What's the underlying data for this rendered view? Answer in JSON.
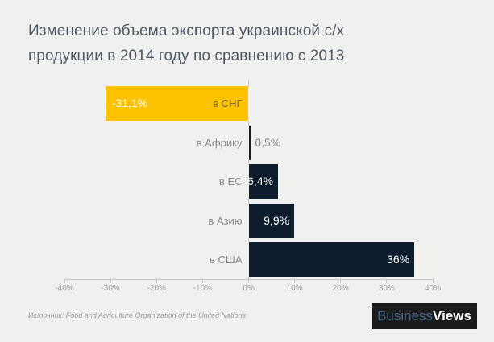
{
  "page": {
    "background_color": "#F0F0EE",
    "title_line1": "Изменение объема экспорта украинской с/х",
    "title_line2": "продукции в 2014 году по сравнению с 2013",
    "title_color": "#4D5966",
    "source_note": "Источник: Food and Agriculture Organization of the United Nations",
    "logo": {
      "part1": "Business",
      "part2": "Views",
      "part1_color": "#44688C",
      "part2_color": "#FFFFFF",
      "background": "#1B1B1B"
    }
  },
  "chart_data": {
    "type": "bar",
    "orientation": "horizontal",
    "title": "Изменение объема экспорта украинской с/х продукции в 2014 году по сравнению с 2013",
    "categories": [
      "в СНГ",
      "в Африку",
      "в ЕС",
      "в Азию",
      "в США"
    ],
    "values": [
      -31.1,
      0.5,
      6.4,
      9.9,
      36
    ],
    "value_labels": [
      "-31,1%",
      "0,5%",
      "6,4%",
      "9,9%",
      "36%"
    ],
    "xlabel": "",
    "ylabel": "",
    "xlim": [
      -40,
      40
    ],
    "grid": false,
    "legend": false,
    "axis_line_color": "#C6C6C6",
    "tick_label_color": "#9C9C9C",
    "x_ticks": [
      {
        "label": "-40%",
        "value": -40
      },
      {
        "label": "-30%",
        "value": -30
      },
      {
        "label": "-20%",
        "value": -20
      },
      {
        "label": "-10%",
        "value": -10
      },
      {
        "label": "0%",
        "value": 0
      },
      {
        "label": "10%",
        "value": 10
      },
      {
        "label": "20%",
        "value": 20
      },
      {
        "label": "30%",
        "value": 30
      },
      {
        "label": "40%",
        "value": 40
      }
    ],
    "series": [
      {
        "category": "в СНГ",
        "value": -31.1,
        "value_label": "-31,1%",
        "bar_color": "#FDC300",
        "value_label_color": "#FFFFFF",
        "value_label_pos": "inside-start",
        "category_label_color": "#6F6B57"
      },
      {
        "category": "в Африку",
        "value": 0.5,
        "value_label": "0,5%",
        "bar_color": "#0D1D2D",
        "value_label_color": "#8A8A8A",
        "value_label_pos": "outside-end",
        "category_label_color": "#8A8A8A"
      },
      {
        "category": "в ЕС",
        "value": 6.4,
        "value_label": "6,4%",
        "bar_color": "#0D1D2D",
        "value_label_color": "#FFFFFF",
        "value_label_pos": "inside-end",
        "category_label_color": "#8A8A8A"
      },
      {
        "category": "в Азию",
        "value": 9.9,
        "value_label": "9,9%",
        "bar_color": "#0D1D2D",
        "value_label_color": "#FFFFFF",
        "value_label_pos": "inside-end",
        "category_label_color": "#8A8A8A"
      },
      {
        "category": "в США",
        "value": 36,
        "value_label": "36%",
        "bar_color": "#0D1D2D",
        "value_label_color": "#FFFFFF",
        "value_label_pos": "inside-end",
        "category_label_color": "#8A8A8A"
      }
    ]
  }
}
